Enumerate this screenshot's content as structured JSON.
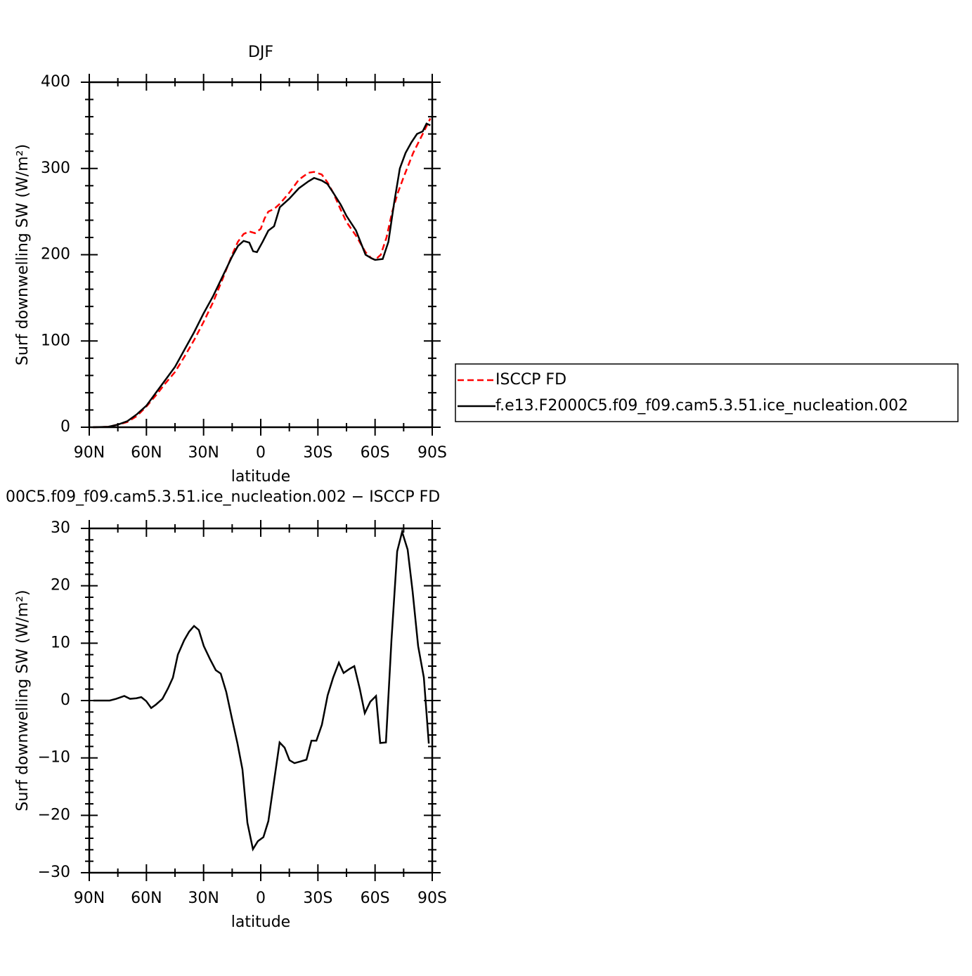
{
  "chart_data": [
    {
      "type": "line",
      "title": "DJF",
      "xlabel": "latitude",
      "ylabel": "Surf downwelling SW (W/m²)",
      "xlim": [
        90,
        -90
      ],
      "ylim": [
        0,
        400
      ],
      "xticks": [
        {
          "value": 90,
          "label": "90N"
        },
        {
          "value": 60,
          "label": "60N"
        },
        {
          "value": 30,
          "label": "30N"
        },
        0,
        {
          "value": -30,
          "label": "30S"
        },
        {
          "value": -60,
          "label": "60S"
        },
        {
          "value": -90,
          "label": "90S"
        }
      ],
      "yticks": [
        0,
        100,
        200,
        300,
        400
      ],
      "legend": "right",
      "series": [
        {
          "name": "ISCCP FD",
          "color": "#ff0000",
          "linestyle": "dashed",
          "x": [
            88,
            80,
            75,
            70,
            65,
            60,
            55,
            50,
            45,
            40,
            35,
            30,
            25,
            20,
            15,
            12,
            9,
            6,
            3,
            0,
            -2,
            -4,
            -7,
            -10,
            -15,
            -20,
            -25,
            -28,
            -32,
            -35,
            -38,
            -42,
            -45,
            -50,
            -55,
            -58,
            -60,
            -63,
            -66,
            -69,
            -72,
            -75,
            -80,
            -85,
            -89
          ],
          "values": [
            0,
            0.5,
            3,
            6,
            13,
            24,
            37,
            51,
            64,
            82,
            101,
            122,
            145,
            172,
            200,
            215,
            224,
            227,
            225,
            230,
            242,
            250,
            253,
            259,
            272,
            287,
            295,
            296,
            293,
            284,
            272,
            252,
            238,
            222,
            203,
            196,
            194,
            200,
            220,
            250,
            272,
            290,
            318,
            340,
            358
          ]
        },
        {
          "name": "f.e13.F2000C5.f09_f09.cam5.3.51.ice_nucleation.002",
          "color": "#000000",
          "linestyle": "solid",
          "x": [
            88,
            80,
            75,
            70,
            65,
            60,
            55,
            50,
            45,
            40,
            35,
            30,
            25,
            20,
            15,
            12,
            9,
            6,
            4,
            2,
            -1,
            -4,
            -7,
            -10,
            -15,
            -20,
            -25,
            -28,
            -32,
            -35,
            -38,
            -42,
            -45,
            -50,
            -55,
            -58,
            -60,
            -64,
            -67,
            -70,
            -73,
            -76,
            -79,
            -82,
            -85,
            -87,
            -89
          ],
          "values": [
            0,
            0.5,
            3,
            7,
            15,
            25,
            40,
            55,
            70,
            90,
            110,
            132,
            152,
            175,
            198,
            210,
            216,
            214,
            204,
            203,
            215,
            228,
            233,
            255,
            265,
            277,
            285,
            289,
            286,
            282,
            272,
            258,
            245,
            228,
            200,
            196,
            194,
            195,
            215,
            260,
            300,
            318,
            330,
            340,
            343,
            352,
            350
          ]
        }
      ]
    },
    {
      "type": "line",
      "title": "00C5.f09_f09.cam5.3.51.ice_nucleation.002 − ISCCP FD",
      "xlabel": "latitude",
      "ylabel": "Surf downwelling SW (W/m²)",
      "xlim": [
        90,
        -90
      ],
      "ylim": [
        -30,
        30
      ],
      "xticks": [
        {
          "value": 90,
          "label": "90N"
        },
        {
          "value": 60,
          "label": "60N"
        },
        {
          "value": 30,
          "label": "30N"
        },
        0,
        {
          "value": -30,
          "label": "30S"
        },
        {
          "value": -60,
          "label": "60S"
        },
        {
          "value": -90,
          "label": "90S"
        }
      ],
      "yticks": [
        {
          "value": -30,
          "label": "−30"
        },
        {
          "value": -20,
          "label": "−20"
        },
        {
          "value": -10,
          "label": "−10"
        },
        0,
        10,
        20,
        30
      ],
      "series": [
        {
          "color": "#000000",
          "linestyle": "solid",
          "x": [
            87.8,
            79.3,
            75.9,
            71.6,
            68.6,
            65.3,
            62.7,
            60.1,
            57.5,
            55,
            51.6,
            48.7,
            46.1,
            43.5,
            40.2,
            37.6,
            35,
            32.5,
            29.9,
            26.6,
            23.6,
            21,
            18.1,
            15.2,
            12.2,
            9.6,
            7,
            4.1,
            1.5,
            -1.4,
            -4,
            -7,
            -9.9,
            -12.5,
            -15.1,
            -17.7,
            -21,
            -24,
            -26.6,
            -29.2,
            -32.1,
            -35.1,
            -38,
            -41,
            -43.5,
            -46.5,
            -49.1,
            -52,
            -54.6,
            -57.5,
            -60.5,
            -62.7,
            -65.7,
            -68.6,
            -71.6,
            -74.2,
            -77.1,
            -79.7,
            -82.6,
            -85.6,
            -88.2
          ],
          "values": [
            0,
            0,
            0.3,
            0.8,
            0.3,
            0.4,
            0.6,
            -0.1,
            -1.3,
            -0.7,
            0.3,
            2.1,
            4,
            8,
            10.5,
            12,
            13,
            12.3,
            9.5,
            7.2,
            5.3,
            4.7,
            1.5,
            -3,
            -7.5,
            -12,
            -21.3,
            -25.9,
            -24.5,
            -23.8,
            -21,
            -14,
            -7.3,
            -8.2,
            -10.4,
            -10.9,
            -10.6,
            -10.3,
            -7,
            -7,
            -4.2,
            0.9,
            4,
            6.6,
            4.8,
            5.5,
            6,
            2,
            -2.2,
            -0.2,
            0.8,
            -7.4,
            -7.3,
            10.5,
            26,
            29.4,
            26.3,
            19,
            9.5,
            4,
            -7.5
          ]
        }
      ]
    }
  ]
}
